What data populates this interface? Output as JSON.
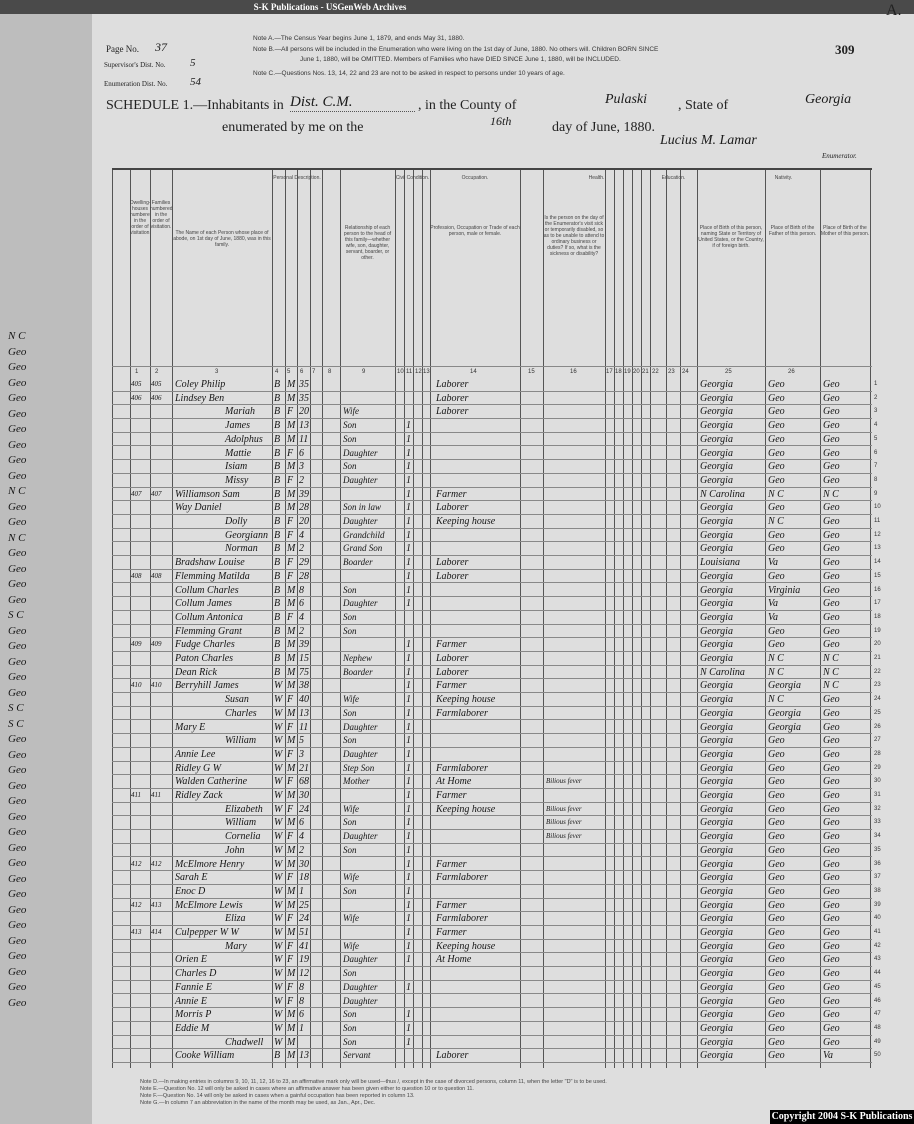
{
  "watermark": "S-K Publications - USGenWeb Archives",
  "corner_letter": "A.",
  "stamp_number": "309",
  "header": {
    "page_label": "Page No.",
    "page_value": "37",
    "supervisor_label": "Supervisor's Dist. No.",
    "supervisor_value": "5",
    "enumeration_label": "Enumeration Dist. No.",
    "enumeration_value": "54",
    "note_a": "Note A.—The Census Year begins June 1, 1879, and ends May 31, 1880.",
    "note_b1": "Note B.—All persons will be included in the Enumeration who were living on the 1st day of June, 1880. No others will. Children BORN SINCE",
    "note_b2": "June 1, 1880, will be OMITTED. Members of Families who have DIED SINCE June 1, 1880, will be INCLUDED.",
    "note_c": "Note C.—Questions Nos. 13, 14, 22 and 23 are not to be asked in respect to persons under 10 years of age.",
    "schedule_label": "SCHEDULE 1.—Inhabitants in",
    "place": "Dist. C.M.",
    "county_label": ", in the County of",
    "county": "Pulaski",
    "state_label": ", State of",
    "state": "Georgia",
    "enumerated_label": "enumerated by me on the",
    "day": "16th",
    "date_suffix": "day of June, 1880.",
    "enumerator_signature": "Lucius M. Lamar",
    "enumerator_label": "Enumerator."
  },
  "column_headers": {
    "dwelling": "Dwelling-houses numbered in the order of visitation.",
    "family": "Families numbered in the order of visitation.",
    "name": "The Name of each Person whose place of abode, on 1st day of June, 1880, was in this family.",
    "personal": "Personal Description.",
    "relationship": "Relationship of each person to the head of this family—whether wife, son, daughter, servant, boarder, or other.",
    "civil": "Civil Condition.",
    "occupation": "Occupation.",
    "occupation_detail": "Profession, Occupation or Trade of each person, male or female.",
    "health": "Health.",
    "health_detail": "Is the person on the day of the Enumerator's visit sick or temporarily disabled, so as to be unable to attend to ordinary business or duties? If so, what is the sickness or disability?",
    "education": "Education.",
    "nativity": "Nativity.",
    "birth_person": "Place of Birth of this person, naming State or Territory of United States, or the Country, if of foreign birth.",
    "birth_father": "Place of Birth of the Father of this person.",
    "birth_mother": "Place of Birth of the Mother of this person.",
    "numbers": [
      "1",
      "2",
      "3",
      "4",
      "5",
      "6",
      "7",
      "8",
      "9",
      "10",
      "11",
      "12",
      "13",
      "14",
      "15",
      "16",
      "17",
      "18",
      "19",
      "20",
      "21",
      "22",
      "23",
      "24",
      "25",
      "26"
    ]
  },
  "rows": [
    [
      "405",
      "405",
      "Coley Philip",
      "B",
      "M",
      "35",
      "",
      "",
      "Laborer",
      "",
      "Georgia",
      "Geo",
      "Geo"
    ],
    [
      "406",
      "406",
      "Lindsey Ben",
      "B",
      "M",
      "35",
      "",
      "",
      "Laborer",
      "",
      "Georgia",
      "Geo",
      "Geo"
    ],
    [
      "",
      "",
      "Mariah",
      "B",
      "F",
      "20",
      "Wife",
      "",
      "Laborer",
      "",
      "Georgia",
      "Geo",
      "Geo"
    ],
    [
      "",
      "",
      "James",
      "B",
      "M",
      "13",
      "Son",
      "1",
      "",
      "",
      "Georgia",
      "Geo",
      "Geo"
    ],
    [
      "",
      "",
      "Adolphus",
      "B",
      "M",
      "11",
      "Son",
      "1",
      "",
      "",
      "Georgia",
      "Geo",
      "Geo"
    ],
    [
      "",
      "",
      "Mattie",
      "B",
      "F",
      "6",
      "Daughter",
      "1",
      "",
      "",
      "Georgia",
      "Geo",
      "Geo"
    ],
    [
      "",
      "",
      "Isiam",
      "B",
      "M",
      "3",
      "Son",
      "1",
      "",
      "",
      "Georgia",
      "Geo",
      "Geo"
    ],
    [
      "",
      "",
      "Missy",
      "B",
      "F",
      "2",
      "Daughter",
      "1",
      "",
      "",
      "Georgia",
      "Geo",
      "Geo"
    ],
    [
      "407",
      "407",
      "Williamson Sam",
      "B",
      "M",
      "39",
      "",
      "1",
      "Farmer",
      "",
      "N Carolina",
      "N C",
      "N C"
    ],
    [
      "",
      "",
      "Way Daniel",
      "B",
      "M",
      "28",
      "Son in law",
      "1",
      "Laborer",
      "",
      "Georgia",
      "Geo",
      "Geo"
    ],
    [
      "",
      "",
      "Dolly",
      "B",
      "F",
      "20",
      "Daughter",
      "1",
      "Keeping house",
      "",
      "Georgia",
      "N C",
      "Geo"
    ],
    [
      "",
      "",
      "Georgiann",
      "B",
      "F",
      "4",
      "Grandchild",
      "1",
      "",
      "",
      "Georgia",
      "Geo",
      "Geo"
    ],
    [
      "",
      "",
      "Norman",
      "B",
      "M",
      "2",
      "Grand Son",
      "1",
      "",
      "",
      "Georgia",
      "Geo",
      "Geo"
    ],
    [
      "",
      "",
      "Bradshaw Louise",
      "B",
      "F",
      "29",
      "Boarder",
      "1",
      "Laborer",
      "",
      "Louisiana",
      "Va",
      "Geo"
    ],
    [
      "408",
      "408",
      "Flemming Matilda",
      "B",
      "F",
      "28",
      "",
      "1",
      "Laborer",
      "",
      "Georgia",
      "Geo",
      "Geo"
    ],
    [
      "",
      "",
      "Collum Charles",
      "B",
      "M",
      "8",
      "Son",
      "1",
      "",
      "",
      "Georgia",
      "Virginia",
      "Geo"
    ],
    [
      "",
      "",
      "Collum James",
      "B",
      "M",
      "6",
      "Daughter",
      "1",
      "",
      "",
      "Georgia",
      "Va",
      "Geo"
    ],
    [
      "",
      "",
      "Collum Antonica",
      "B",
      "F",
      "4",
      "Son",
      "",
      "",
      "",
      "Georgia",
      "Va",
      "Geo"
    ],
    [
      "",
      "",
      "Flemming Grant",
      "B",
      "M",
      "2",
      "Son",
      "",
      "",
      "",
      "Georgia",
      "Geo",
      "Geo"
    ],
    [
      "409",
      "409",
      "Fudge Charles",
      "B",
      "M",
      "39",
      "",
      "1",
      "Farmer",
      "",
      "Georgia",
      "Geo",
      "Geo"
    ],
    [
      "",
      "",
      "Paton Charles",
      "B",
      "M",
      "15",
      "Nephew",
      "1",
      "Laborer",
      "",
      "Georgia",
      "N C",
      "N C"
    ],
    [
      "",
      "",
      "Dean Rick",
      "B",
      "M",
      "75",
      "Boarder",
      "1",
      "Laborer",
      "",
      "N Carolina",
      "N C",
      "N C"
    ],
    [
      "410",
      "410",
      "Berryhill James",
      "W",
      "M",
      "38",
      "",
      "1",
      "Farmer",
      "",
      "Georgia",
      "Georgia",
      "N C"
    ],
    [
      "",
      "",
      "Susan",
      "W",
      "F",
      "40",
      "Wife",
      "1",
      "Keeping house",
      "",
      "Georgia",
      "N C",
      "Geo"
    ],
    [
      "",
      "",
      "Charles",
      "W",
      "M",
      "13",
      "Son",
      "1",
      "Farmlaborer",
      "",
      "Georgia",
      "Georgia",
      "Geo"
    ],
    [
      "",
      "",
      "Mary E",
      "W",
      "F",
      "11",
      "Daughter",
      "1",
      "",
      "",
      "Georgia",
      "Georgia",
      "Geo"
    ],
    [
      "",
      "",
      "William",
      "W",
      "M",
      "5",
      "Son",
      "1",
      "",
      "",
      "Georgia",
      "Geo",
      "Geo"
    ],
    [
      "",
      "",
      "Annie Lee",
      "W",
      "F",
      "3",
      "Daughter",
      "1",
      "",
      "",
      "Georgia",
      "Geo",
      "Geo"
    ],
    [
      "",
      "",
      "Ridley G W",
      "W",
      "M",
      "21",
      "Step Son",
      "1",
      "Farmlaborer",
      "",
      "Georgia",
      "Geo",
      "Geo"
    ],
    [
      "",
      "",
      "Walden Catherine",
      "W",
      "F",
      "68",
      "Mother",
      "1",
      "At Home",
      "Bilious fever",
      "Georgia",
      "Geo",
      "Geo"
    ],
    [
      "411",
      "411",
      "Ridley Zack",
      "W",
      "M",
      "30",
      "",
      "1",
      "Farmer",
      "",
      "Georgia",
      "Geo",
      "Geo"
    ],
    [
      "",
      "",
      "Elizabeth",
      "W",
      "F",
      "24",
      "Wife",
      "1",
      "Keeping house",
      "Bilious fever",
      "Georgia",
      "Geo",
      "Geo"
    ],
    [
      "",
      "",
      "William",
      "W",
      "M",
      "6",
      "Son",
      "1",
      "",
      "Bilious fever",
      "Georgia",
      "Geo",
      "Geo"
    ],
    [
      "",
      "",
      "Cornelia",
      "W",
      "F",
      "4",
      "Daughter",
      "1",
      "",
      "Bilious fever",
      "Georgia",
      "Geo",
      "Geo"
    ],
    [
      "",
      "",
      "John",
      "W",
      "M",
      "2",
      "Son",
      "1",
      "",
      "",
      "Georgia",
      "Geo",
      "Geo"
    ],
    [
      "412",
      "412",
      "McElmore Henry",
      "W",
      "M",
      "30",
      "",
      "1",
      "Farmer",
      "",
      "Georgia",
      "Geo",
      "Geo"
    ],
    [
      "",
      "",
      "Sarah E",
      "W",
      "F",
      "18",
      "Wife",
      "1",
      "Farmlaborer",
      "",
      "Georgia",
      "Geo",
      "Geo"
    ],
    [
      "",
      "",
      "Enoc D",
      "W",
      "M",
      "1",
      "Son",
      "1",
      "",
      "",
      "Georgia",
      "Geo",
      "Geo"
    ],
    [
      "412",
      "413",
      "McElmore Lewis",
      "W",
      "M",
      "25",
      "",
      "1",
      "Farmer",
      "",
      "Georgia",
      "Geo",
      "Geo"
    ],
    [
      "",
      "",
      "Eliza",
      "W",
      "F",
      "24",
      "Wife",
      "1",
      "Farmlaborer",
      "",
      "Georgia",
      "Geo",
      "Geo"
    ],
    [
      "413",
      "414",
      "Culpepper W W",
      "W",
      "M",
      "51",
      "",
      "1",
      "Farmer",
      "",
      "Georgia",
      "Geo",
      "Geo"
    ],
    [
      "",
      "",
      "Mary",
      "W",
      "F",
      "41",
      "Wife",
      "1",
      "Keeping house",
      "",
      "Georgia",
      "Geo",
      "Geo"
    ],
    [
      "",
      "",
      "Orien E",
      "W",
      "F",
      "19",
      "Daughter",
      "1",
      "At Home",
      "",
      "Georgia",
      "Geo",
      "Geo"
    ],
    [
      "",
      "",
      "Charles D",
      "W",
      "M",
      "12",
      "Son",
      "",
      "",
      "",
      "Georgia",
      "Geo",
      "Geo"
    ],
    [
      "",
      "",
      "Fannie E",
      "W",
      "F",
      "8",
      "Daughter",
      "1",
      "",
      "",
      "Georgia",
      "Geo",
      "Geo"
    ],
    [
      "",
      "",
      "Annie E",
      "W",
      "F",
      "8",
      "Daughter",
      "",
      "",
      "",
      "Georgia",
      "Geo",
      "Geo"
    ],
    [
      "",
      "",
      "Morris P",
      "W",
      "M",
      "6",
      "Son",
      "1",
      "",
      "",
      "Georgia",
      "Geo",
      "Geo"
    ],
    [
      "",
      "",
      "Eddie M",
      "W",
      "M",
      "1",
      "Son",
      "1",
      "",
      "",
      "Georgia",
      "Geo",
      "Geo"
    ],
    [
      "",
      "",
      "Chadwell",
      "W",
      "M",
      "",
      "Son",
      "1",
      "",
      "",
      "Georgia",
      "Geo",
      "Geo"
    ],
    [
      "",
      "",
      "Cooke William",
      "B",
      "M",
      "13",
      "Servant",
      "",
      "Laborer",
      "",
      "Georgia",
      "Geo",
      "Va"
    ]
  ],
  "left_page": [
    "N C",
    "Geo",
    "Geo",
    "Geo",
    "Geo",
    "Geo",
    "Geo",
    "Geo",
    "Geo",
    "Geo",
    "N C",
    "Geo",
    "Geo",
    "N C",
    "Geo",
    "Geo",
    "Geo",
    "Geo",
    "S C",
    "Geo",
    "Geo",
    "Geo",
    "Geo",
    "Geo",
    "S C",
    "S C",
    "Geo",
    "Geo",
    "Geo",
    "Geo",
    "Geo",
    "Geo",
    "Geo",
    "Geo",
    "Geo",
    "Geo",
    "Geo",
    "Geo",
    "Geo",
    "Geo",
    "Geo",
    "Geo",
    "Geo",
    "Geo"
  ],
  "footnotes": [
    "Note D.—In making entries in columns 9, 10, 11, 12, 16 to 23, an affirmative mark only will be used—thus /, except in the case of divorced persons, column 11, when the letter \"D\" is to be used.",
    "Note E.—Question No. 12 will only be asked in cases where an affirmative answer has been given either to question 10 or to question 11.",
    "Note F.—Question No. 14 will only be asked in cases when a gainful occupation has been reported in column 13.",
    "Note G.—In column 7 an abbreviation in the name of the month may be used, as Jan., Apr., Dec."
  ],
  "copyright": "Copyright 2004 S-K Publications"
}
